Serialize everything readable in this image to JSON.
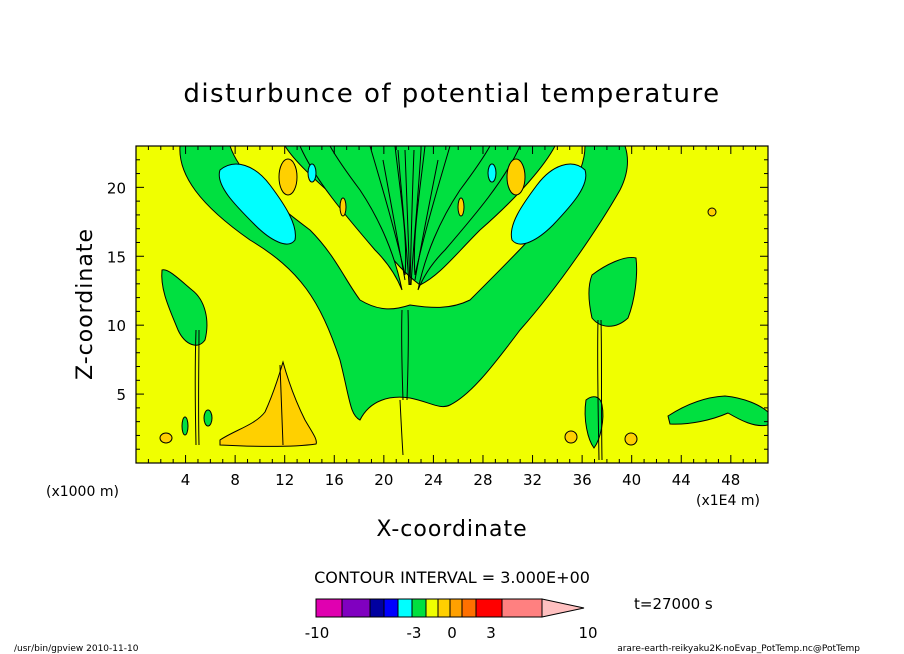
{
  "chart_data": {
    "type": "heatmap",
    "title": "disturbunce of potential temperature",
    "xlabel": "X-coordinate",
    "ylabel": "Z-coordinate",
    "x_unit_note": "(x1000 m)",
    "x_unit_note_right": "(x1E4 m)",
    "xlim": [
      0,
      51
    ],
    "ylim": [
      0,
      23
    ],
    "x_ticks": [
      4,
      8,
      12,
      16,
      20,
      24,
      28,
      32,
      36,
      40,
      44,
      48
    ],
    "y_ticks": [
      5,
      10,
      15,
      20
    ],
    "contour_interval": "CONTOUR INTERVAL = 3.000E+00",
    "time_label": "t=27000 s",
    "colorbar": {
      "colors": [
        "#e000b0",
        "#8000c0",
        "#0000a0",
        "#0000ff",
        "#00ffff",
        "#00e040",
        "#f0ff00",
        "#ffd000",
        "#ffa000",
        "#ff7000",
        "#ff0000",
        "#ff8080",
        "#ffc0c0"
      ],
      "tick_labels": [
        "-10",
        "-3",
        "0",
        "3",
        "10"
      ]
    },
    "field_colors": {
      "background": "#f0ff00",
      "green": "#00e040",
      "cyan": "#00ffff",
      "orange": "#ffd000"
    }
  },
  "footer": {
    "left": "/usr/bin/gpview   2010-11-10",
    "right": "arare-earth-reikyaku2K-noEvap_PotTemp.nc@PotTemp"
  }
}
